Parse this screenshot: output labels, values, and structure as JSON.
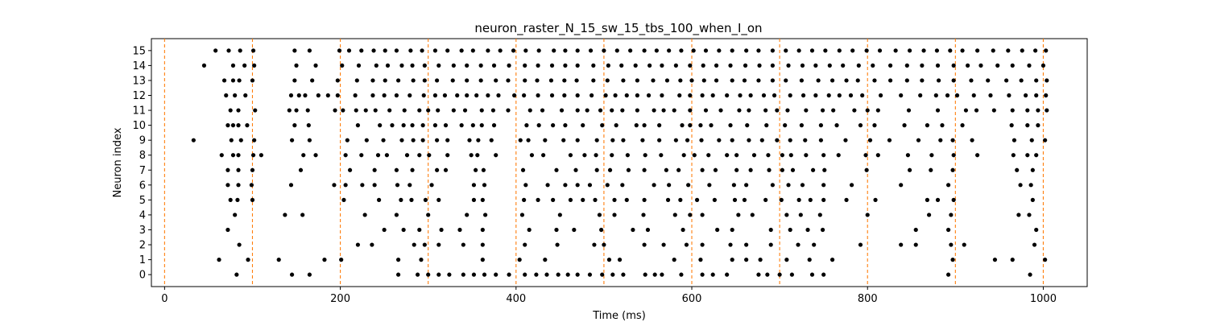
{
  "chart_data": {
    "type": "scatter",
    "title": "neuron_raster_N_15_sw_15_tbs_100_when_I_on",
    "xlabel": "Time (ms)",
    "ylabel": "Neuron index",
    "xlim": [
      -15,
      1050
    ],
    "ylim": [
      -0.8,
      15.8
    ],
    "x_ticks": [
      0,
      200,
      400,
      600,
      800,
      1000
    ],
    "y_ticks": [
      0,
      1,
      2,
      3,
      4,
      5,
      6,
      7,
      8,
      9,
      10,
      11,
      12,
      13,
      14,
      15
    ],
    "grid": false,
    "legend": "none",
    "marker_color": "#000000",
    "vline_color": "#ff7f0e",
    "vline_style": "dashed",
    "vlines_x": [
      0,
      100,
      200,
      300,
      400,
      500,
      600,
      700,
      800,
      900,
      1000
    ],
    "series": [
      {
        "x": [
          82,
          145,
          165,
          266,
          288,
          300,
          312,
          324,
          340,
          352,
          364,
          377,
          392,
          410,
          423,
          435,
          448,
          459,
          470,
          484,
          498,
          510,
          522,
          547,
          558,
          566,
          588,
          612,
          624,
          640,
          676,
          686,
          700,
          714,
          737,
          750,
          892,
          985
        ],
        "y": 0
      },
      {
        "x": [
          62,
          95,
          130,
          182,
          201,
          266,
          292,
          362,
          404,
          433,
          506,
          518,
          580,
          610,
          646,
          662,
          678,
          708,
          734,
          760,
          897,
          945,
          965,
          1002
        ],
        "y": 1
      },
      {
        "x": [
          85,
          220,
          236,
          284,
          296,
          312,
          340,
          362,
          410,
          447,
          489,
          500,
          546,
          568,
          594,
          612,
          644,
          662,
          690,
          721,
          739,
          792,
          838,
          855,
          895,
          910,
          990
        ],
        "y": 2
      },
      {
        "x": [
          72,
          250,
          272,
          290,
          315,
          336,
          362,
          415,
          446,
          466,
          497,
          533,
          550,
          590,
          629,
          646,
          690,
          712,
          732,
          749,
          855,
          892,
          992
        ],
        "y": 3
      },
      {
        "x": [
          80,
          137,
          157,
          228,
          264,
          300,
          344,
          365,
          407,
          450,
          495,
          512,
          545,
          581,
          598,
          612,
          653,
          669,
          708,
          724,
          746,
          800,
          870,
          895,
          972,
          984
        ],
        "y": 4
      },
      {
        "x": [
          75,
          83,
          100,
          204,
          244,
          269,
          281,
          297,
          312,
          352,
          362,
          409,
          425,
          442,
          462,
          476,
          490,
          512,
          526,
          546,
          573,
          587,
          606,
          626,
          649,
          660,
          684,
          702,
          722,
          735,
          750,
          776,
          809,
          868,
          880,
          898,
          988
        ],
        "y": 5
      },
      {
        "x": [
          72,
          84,
          99,
          144,
          193,
          206,
          225,
          239,
          265,
          279,
          304,
          352,
          364,
          411,
          436,
          456,
          470,
          484,
          504,
          521,
          557,
          574,
          596,
          620,
          648,
          662,
          692,
          710,
          726,
          750,
          782,
          838,
          892,
          974,
          986
        ],
        "y": 6
      },
      {
        "x": [
          72,
          84,
          100,
          155,
          211,
          239,
          264,
          282,
          310,
          320,
          354,
          363,
          408,
          446,
          468,
          492,
          507,
          528,
          546,
          571,
          585,
          612,
          627,
          651,
          667,
          688,
          703,
          715,
          738,
          751,
          799,
          848,
          872,
          897,
          970,
          988
        ],
        "y": 7
      },
      {
        "x": [
          65,
          78,
          84,
          101,
          110,
          158,
          172,
          206,
          224,
          243,
          253,
          276,
          290,
          301,
          322,
          349,
          356,
          377,
          418,
          431,
          462,
          478,
          491,
          509,
          527,
          547,
          565,
          591,
          603,
          619,
          640,
          651,
          671,
          687,
          703,
          713,
          730,
          750,
          767,
          798,
          812,
          846,
          873,
          898,
          925,
          966,
          982,
          992
        ],
        "y": 8
      },
      {
        "x": [
          33,
          76,
          87,
          102,
          145,
          165,
          208,
          230,
          249,
          270,
          283,
          294,
          310,
          322,
          347,
          357,
          372,
          405,
          414,
          433,
          454,
          470,
          492,
          510,
          522,
          544,
          563,
          582,
          595,
          611,
          631,
          646,
          665,
          680,
          697,
          712,
          729,
          747,
          775,
          803,
          825,
          858,
          883,
          897,
          919,
          967,
          987,
          1002
        ],
        "y": 9
      },
      {
        "x": [
          72,
          78,
          84,
          94,
          148,
          164,
          220,
          245,
          259,
          272,
          282,
          294,
          308,
          320,
          338,
          351,
          361,
          375,
          412,
          426,
          442,
          456,
          476,
          498,
          514,
          537,
          546,
          563,
          589,
          598,
          610,
          622,
          644,
          663,
          685,
          706,
          725,
          747,
          765,
          792,
          808,
          842,
          868,
          885,
          908,
          964,
          982,
          994
        ],
        "y": 10
      },
      {
        "x": [
          75,
          84,
          103,
          142,
          150,
          163,
          194,
          203,
          218,
          229,
          240,
          256,
          273,
          290,
          300,
          311,
          329,
          342,
          361,
          374,
          391,
          416,
          430,
          452,
          470,
          481,
          496,
          509,
          521,
          538,
          557,
          568,
          580,
          598,
          616,
          633,
          654,
          665,
          684,
          697,
          709,
          730,
          749,
          761,
          785,
          800,
          812,
          847,
          880,
          912,
          924,
          944,
          965,
          982,
          994,
          1004
        ],
        "y": 11
      },
      {
        "x": [
          70,
          80,
          92,
          144,
          153,
          160,
          175,
          186,
          197,
          217,
          237,
          250,
          264,
          279,
          295,
          308,
          319,
          333,
          344,
          355,
          368,
          380,
          398,
          409,
          425,
          441,
          455,
          470,
          486,
          502,
          513,
          526,
          538,
          551,
          566,
          586,
          598,
          612,
          624,
          640,
          655,
          667,
          682,
          694,
          712,
          727,
          741,
          756,
          768,
          781,
          794,
          815,
          838,
          860,
          878,
          891,
          902,
          921,
          940,
          961,
          980,
          992,
          1003
        ],
        "y": 12
      },
      {
        "x": [
          68,
          78,
          85,
          100,
          148,
          168,
          197,
          219,
          237,
          251,
          266,
          283,
          296,
          310,
          328,
          344,
          360,
          377,
          391,
          410,
          424,
          440,
          455,
          469,
          488,
          504,
          522,
          538,
          556,
          572,
          587,
          600,
          614,
          628,
          646,
          660,
          676,
          692,
          707,
          725,
          744,
          760,
          776,
          789,
          808,
          826,
          845,
          862,
          881,
          898,
          918,
          937,
          958,
          975,
          992,
          1004
        ],
        "y": 13
      },
      {
        "x": [
          45,
          78,
          91,
          102,
          150,
          172,
          202,
          221,
          241,
          254,
          270,
          282,
          296,
          312,
          329,
          344,
          360,
          375,
          392,
          410,
          425,
          441,
          456,
          470,
          488,
          505,
          520,
          536,
          552,
          566,
          582,
          598,
          613,
          628,
          644,
          661,
          677,
          692,
          710,
          726,
          741,
          757,
          772,
          790,
          806,
          826,
          845,
          862,
          880,
          898,
          914,
          929,
          948,
          965,
          984,
          1000
        ],
        "y": 14
      },
      {
        "x": [
          58,
          73,
          86,
          101,
          148,
          165,
          199,
          210,
          224,
          238,
          251,
          264,
          280,
          293,
          308,
          322,
          338,
          351,
          368,
          382,
          397,
          411,
          426,
          443,
          456,
          470,
          485,
          500,
          515,
          530,
          546,
          560,
          574,
          588,
          602,
          616,
          631,
          646,
          662,
          676,
          692,
          707,
          722,
          737,
          752,
          768,
          783,
          799,
          814,
          832,
          848,
          864,
          879,
          894,
          908,
          925,
          943,
          960,
          976,
          991,
          1003
        ],
        "y": 15
      }
    ]
  }
}
